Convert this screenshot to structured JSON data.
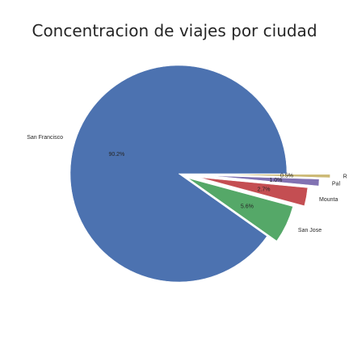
{
  "chart_data": {
    "type": "pie",
    "title": "Concentracion de viajes por ciudad",
    "slices": [
      {
        "label": "San Francisco",
        "value": 90.2,
        "pct_label": "90.2%",
        "color": "#4c72b0",
        "explode": 0.0
      },
      {
        "label": "San Jose",
        "value": 5.6,
        "pct_label": "5.6%",
        "color": "#55a868",
        "explode": 0.1
      },
      {
        "label": "Mounta",
        "value": 2.7,
        "pct_label": "2.7%",
        "color": "#c44e52",
        "explode": 0.2
      },
      {
        "label": "Pal",
        "value": 1.0,
        "pct_label": "1.0%",
        "color": "#8172b2",
        "explode": 0.3
      },
      {
        "label": "R",
        "value": 0.5,
        "pct_label": "0.5%",
        "color": "#ccb974",
        "explode": 0.4
      }
    ],
    "start_angle_deg": 0,
    "direction": "counterclockwise"
  }
}
